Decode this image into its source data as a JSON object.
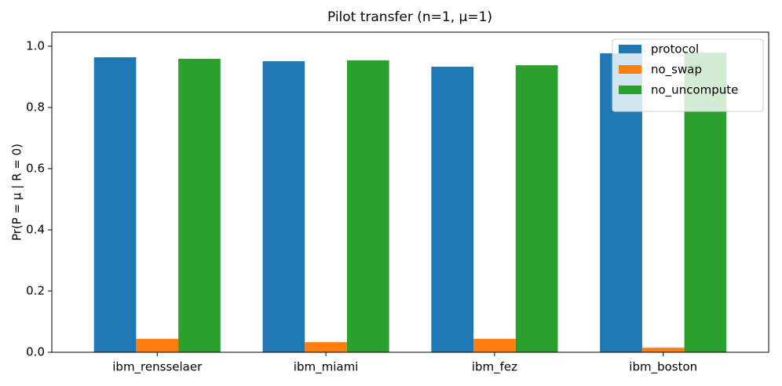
{
  "chart_data": {
    "type": "bar",
    "title": "Pilot transfer (n=1, μ=1)",
    "y_label": "Pr(P = μ | R = 0)",
    "categories": [
      "ibm_rensselaer",
      "ibm_miami",
      "ibm_fez",
      "ibm_boston"
    ],
    "series": [
      {
        "name": "protocol",
        "color": "#1f77b4",
        "values": [
          0.964,
          0.951,
          0.933,
          0.977
        ]
      },
      {
        "name": "no_swap",
        "color": "#ff7f0e",
        "values": [
          0.044,
          0.033,
          0.044,
          0.015
        ]
      },
      {
        "name": "no_uncompute",
        "color": "#2ca02c",
        "values": [
          0.959,
          0.954,
          0.938,
          0.979
        ]
      }
    ],
    "ylim": [
      0,
      1.046
    ],
    "yticks": [
      {
        "value": 0,
        "label": "0.0"
      },
      0.2,
      0.4,
      0.6,
      0.8,
      {
        "value": 1,
        "label": "1.0"
      }
    ],
    "grid": false,
    "legend": "upper right"
  }
}
